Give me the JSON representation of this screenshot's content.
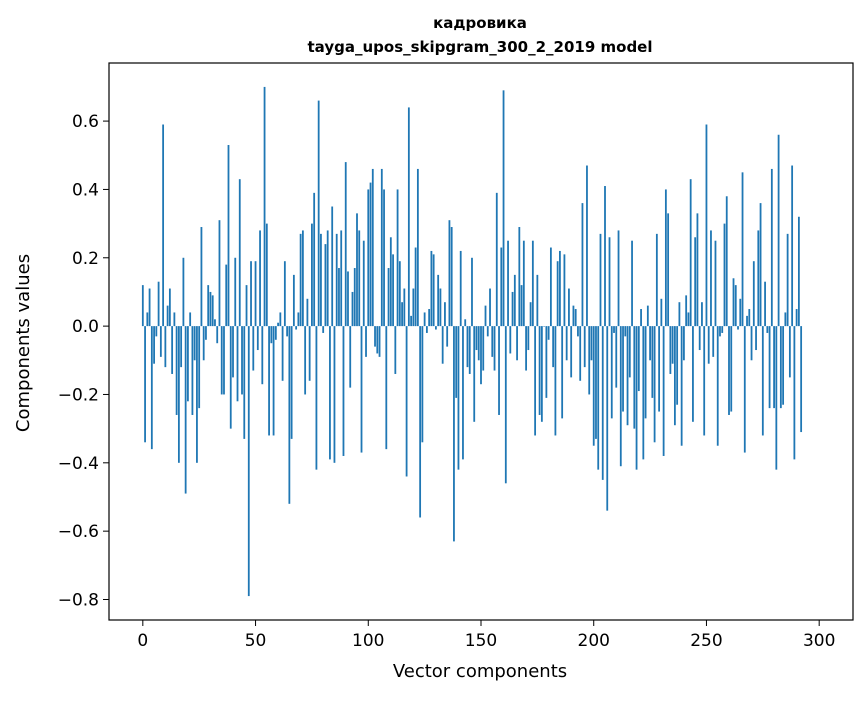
{
  "chart_data": {
    "type": "bar",
    "title_line1": "кадровика",
    "title_line2": "tayga_upos_skipgram_300_2_2019 model",
    "xlabel": "Vector components",
    "ylabel": "Components values",
    "xlim": [
      -15,
      315
    ],
    "ylim": [
      -0.86,
      0.77
    ],
    "xticks": [
      0,
      50,
      100,
      150,
      200,
      250,
      300
    ],
    "xtick_labels": [
      "0",
      "50",
      "100",
      "150",
      "200",
      "250",
      "300"
    ],
    "yticks": [
      -0.8,
      -0.6,
      -0.4,
      -0.2,
      0.0,
      0.2,
      0.4,
      0.6
    ],
    "ytick_labels": [
      "−0.8",
      "−0.6",
      "−0.4",
      "−0.2",
      "0.0",
      "0.2",
      "0.4",
      "0.6"
    ],
    "bar_color": "#1f77b4",
    "grid": false,
    "values": [
      0.12,
      -0.34,
      0.04,
      0.11,
      -0.36,
      -0.11,
      -0.03,
      0.13,
      -0.09,
      0.59,
      -0.12,
      0.06,
      0.11,
      -0.14,
      0.04,
      -0.26,
      -0.4,
      -0.12,
      0.2,
      -0.49,
      -0.22,
      0.04,
      -0.26,
      -0.1,
      -0.4,
      -0.24,
      0.29,
      -0.1,
      -0.04,
      0.12,
      0.1,
      0.09,
      0.02,
      -0.05,
      0.31,
      -0.2,
      -0.2,
      0.18,
      0.53,
      -0.3,
      -0.15,
      0.2,
      -0.22,
      0.43,
      -0.2,
      -0.33,
      0.12,
      -0.79,
      0.19,
      -0.13,
      0.19,
      -0.07,
      0.28,
      -0.17,
      0.7,
      0.3,
      -0.32,
      -0.05,
      -0.32,
      -0.04,
      0.01,
      0.04,
      -0.16,
      0.19,
      -0.03,
      -0.52,
      -0.33,
      0.15,
      -0.01,
      0.04,
      0.27,
      0.28,
      -0.2,
      0.08,
      -0.16,
      0.3,
      0.39,
      -0.42,
      0.66,
      0.27,
      -0.02,
      0.24,
      0.28,
      -0.39,
      0.35,
      -0.4,
      0.27,
      0.17,
      0.28,
      -0.38,
      0.48,
      0.16,
      -0.18,
      0.1,
      0.17,
      0.33,
      0.28,
      -0.37,
      0.25,
      -0.09,
      0.4,
      0.42,
      0.46,
      -0.06,
      -0.08,
      -0.09,
      0.46,
      0.4,
      -0.36,
      0.17,
      0.26,
      0.21,
      -0.14,
      0.4,
      0.19,
      0.07,
      0.11,
      -0.44,
      0.64,
      0.03,
      0.11,
      0.23,
      0.46,
      -0.56,
      -0.34,
      0.04,
      -0.02,
      0.05,
      0.22,
      0.21,
      -0.01,
      0.15,
      0.11,
      -0.11,
      0.07,
      -0.06,
      0.31,
      0.29,
      -0.63,
      -0.21,
      -0.42,
      0.22,
      -0.39,
      0.02,
      -0.12,
      -0.14,
      0.2,
      -0.28,
      -0.07,
      -0.1,
      -0.17,
      -0.13,
      0.06,
      -0.03,
      0.11,
      -0.09,
      -0.13,
      0.39,
      -0.26,
      0.23,
      0.69,
      -0.46,
      0.25,
      -0.08,
      0.1,
      0.15,
      -0.1,
      0.29,
      0.12,
      0.25,
      -0.13,
      -0.07,
      0.07,
      0.25,
      -0.32,
      0.15,
      -0.26,
      -0.28,
      0.0,
      -0.21,
      -0.04,
      0.23,
      -0.12,
      -0.32,
      0.19,
      0.22,
      -0.27,
      0.21,
      -0.1,
      0.11,
      -0.15,
      0.06,
      0.05,
      -0.03,
      -0.16,
      0.36,
      -0.12,
      0.47,
      -0.2,
      -0.1,
      -0.35,
      -0.33,
      -0.42,
      0.27,
      -0.45,
      0.41,
      -0.54,
      0.26,
      -0.27,
      -0.02,
      -0.18,
      0.28,
      -0.41,
      -0.25,
      -0.03,
      -0.29,
      -0.15,
      0.25,
      -0.3,
      -0.42,
      -0.19,
      0.05,
      -0.39,
      -0.27,
      0.06,
      -0.1,
      -0.21,
      -0.34,
      0.27,
      -0.25,
      0.08,
      -0.38,
      0.4,
      0.33,
      -0.14,
      -0.11,
      -0.29,
      -0.23,
      0.07,
      -0.35,
      -0.1,
      0.09,
      0.04,
      0.43,
      -0.28,
      0.26,
      0.33,
      -0.07,
      0.07,
      -0.32,
      0.59,
      -0.11,
      0.28,
      -0.09,
      0.25,
      -0.35,
      -0.03,
      -0.02,
      0.3,
      0.38,
      -0.26,
      -0.25,
      0.14,
      0.12,
      -0.01,
      0.08,
      0.45,
      -0.37,
      0.03,
      0.05,
      -0.1,
      0.19,
      -0.07,
      0.28,
      0.36,
      -0.32,
      0.13,
      -0.02,
      -0.24,
      0.46,
      -0.24,
      -0.42,
      0.56,
      -0.24,
      -0.23,
      0.04,
      0.27,
      -0.15,
      0.47,
      -0.39,
      0.05,
      0.32,
      -0.31
    ]
  }
}
